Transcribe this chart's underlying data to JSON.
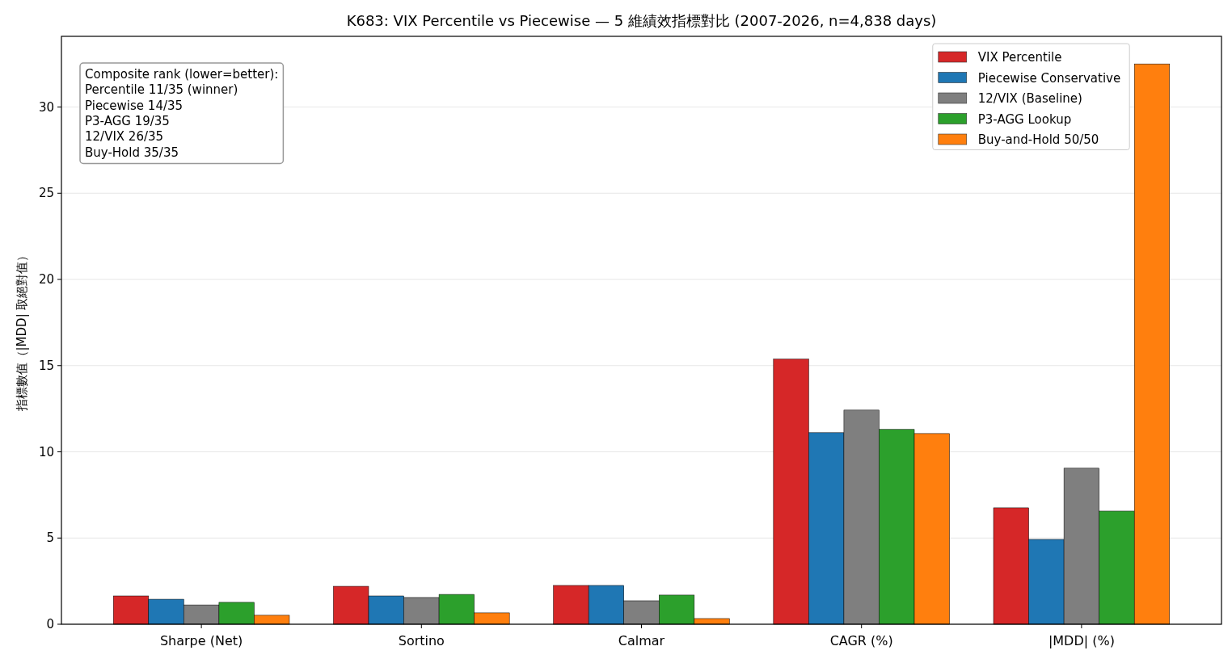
{
  "chart_data": {
    "type": "bar",
    "title": "K683: VIX Percentile vs Piecewise — 5 維績效指標對比 (2007-2026, n=4,838 days)",
    "ylabel": "指標數值（|MDD| 取絕對值）",
    "categories": [
      "Sharpe (Net)",
      "Sortino",
      "Calmar",
      "CAGR (%)",
      "|MDD| (%)"
    ],
    "series": [
      {
        "name": "VIX Percentile",
        "color": "#d62728",
        "values": [
          1.64,
          2.2,
          2.25,
          15.38,
          6.75
        ]
      },
      {
        "name": "Piecewise Conservative",
        "color": "#1f77b4",
        "values": [
          1.45,
          1.64,
          2.25,
          11.11,
          4.92
        ]
      },
      {
        "name": "12/VIX (Baseline)",
        "color": "#7f7f7f",
        "values": [
          1.12,
          1.55,
          1.36,
          12.42,
          9.05
        ]
      },
      {
        "name": "P3-AGG Lookup",
        "color": "#2ca02c",
        "values": [
          1.27,
          1.73,
          1.69,
          11.3,
          6.56
        ]
      },
      {
        "name": "Buy-and-Hold 50/50",
        "color": "#ff7f0e",
        "values": [
          0.52,
          0.66,
          0.33,
          11.06,
          32.5
        ]
      }
    ],
    "ylim": [
      0,
      34.1
    ],
    "yticks": [
      0,
      5,
      10,
      15,
      20,
      25,
      30
    ],
    "grid": "y",
    "legend": "top right",
    "annotations": [
      "Composite rank (lower=better):\nPercentile 11/35 (winner)\nPiecewise 14/35\nP3-AGG 19/35\n12/VIX 26/35\nBuy-Hold 35/35"
    ]
  }
}
